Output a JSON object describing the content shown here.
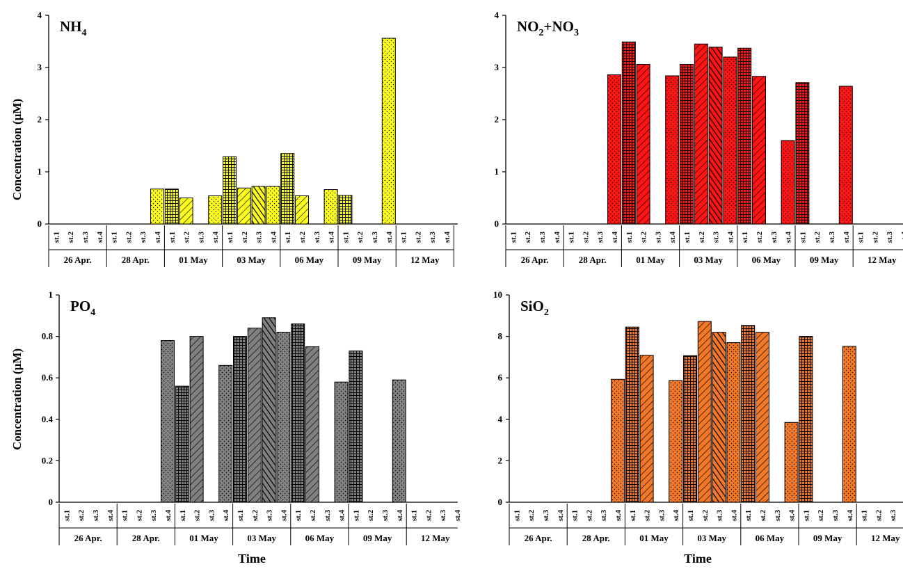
{
  "figure": {
    "ylabel": "Concentration (µM)",
    "xlabel": "Time"
  },
  "chart_data": [
    {
      "type": "bar",
      "title_main": "NH",
      "title_sub": "4",
      "title_rest": "",
      "ylim": [
        0,
        4
      ],
      "yticks": [
        "0",
        "1",
        "2",
        "3",
        "4"
      ],
      "fill": "#ffff1e",
      "groups": [
        "26 Apr.",
        "28 Apr.",
        "01 May",
        "03 May",
        "06 May",
        "09 May",
        "12 May"
      ],
      "stations": [
        "st.1",
        "st.2",
        "st.3",
        "st.4"
      ],
      "values": [
        [
          null,
          null,
          null,
          null
        ],
        [
          null,
          null,
          null,
          0.67
        ],
        [
          0.67,
          0.5,
          null,
          0.54
        ],
        [
          1.29,
          0.69,
          0.72,
          0.72
        ],
        [
          1.35,
          0.54,
          null,
          0.66
        ],
        [
          0.55,
          null,
          null,
          3.56
        ],
        [
          null,
          null,
          null,
          null
        ]
      ]
    },
    {
      "type": "bar",
      "title_main": "NO",
      "title_sub": "2",
      "title_rest": "+NO",
      "title_sub2": "3",
      "ylim": [
        0,
        4
      ],
      "yticks": [
        "0",
        "1",
        "2",
        "3",
        "4"
      ],
      "fill": "#ff1414",
      "groups": [
        "26 Apr.",
        "28 Apr.",
        "01 May",
        "03 May",
        "06 May",
        "09 May",
        "12 May"
      ],
      "stations": [
        "st.1",
        "st.2",
        "st.3",
        "st.4"
      ],
      "values": [
        [
          null,
          null,
          null,
          null
        ],
        [
          null,
          null,
          null,
          2.86
        ],
        [
          3.49,
          3.06,
          null,
          2.84
        ],
        [
          3.06,
          3.45,
          3.39,
          3.2
        ],
        [
          3.37,
          2.83,
          null,
          1.6
        ],
        [
          2.71,
          null,
          null,
          2.64
        ],
        [
          null,
          null,
          null,
          null
        ]
      ]
    },
    {
      "type": "bar",
      "title_main": "PO",
      "title_sub": "4",
      "title_rest": "",
      "ylim": [
        0,
        1
      ],
      "yticks": [
        "0",
        "0.2",
        "0.4",
        "0.6",
        "0.8",
        "1"
      ],
      "fill": "#808080",
      "groups": [
        "26 Apr.",
        "28 Apr.",
        "01 May",
        "03 May",
        "06 May",
        "09 May",
        "12 May"
      ],
      "stations": [
        "st.1",
        "st.2",
        "st.3",
        "st.4"
      ],
      "values": [
        [
          null,
          null,
          null,
          null
        ],
        [
          null,
          null,
          null,
          0.78
        ],
        [
          0.56,
          0.8,
          null,
          0.66
        ],
        [
          0.8,
          0.84,
          0.89,
          0.82
        ],
        [
          0.86,
          0.75,
          null,
          0.58
        ],
        [
          0.73,
          null,
          null,
          0.59
        ],
        [
          null,
          null,
          null,
          null
        ]
      ]
    },
    {
      "type": "bar",
      "title_main": "SiO",
      "title_sub": "2",
      "title_rest": "",
      "ylim": [
        0,
        10
      ],
      "yticks": [
        "0",
        "2",
        "4",
        "6",
        "8",
        "10"
      ],
      "fill": "#f07828",
      "groups": [
        "26 Apr.",
        "28 Apr.",
        "01 May",
        "03 May",
        "06 May",
        "09 May",
        "12 May"
      ],
      "stations": [
        "st.1",
        "st.2",
        "st.3",
        "st.4"
      ],
      "values": [
        [
          null,
          null,
          null,
          null
        ],
        [
          null,
          null,
          null,
          5.93
        ],
        [
          8.45,
          7.09,
          null,
          5.87
        ],
        [
          7.07,
          8.72,
          8.2,
          7.7
        ],
        [
          8.53,
          8.2,
          null,
          3.85
        ],
        [
          8.0,
          null,
          null,
          7.52
        ],
        [
          null,
          null,
          null,
          null
        ]
      ]
    }
  ]
}
